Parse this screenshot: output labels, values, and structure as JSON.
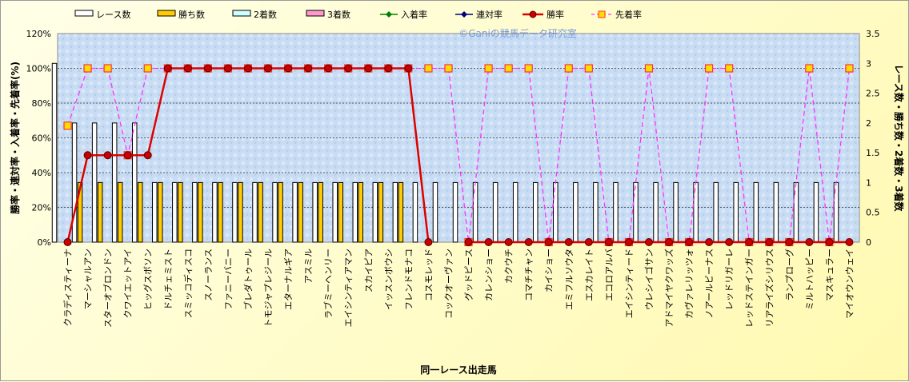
{
  "chart_data": {
    "type": "bar",
    "watermark": "©Ganiの競馬データ研究室",
    "xlabel": "同一レース出走馬",
    "ylabel_left": "勝率・連対率・入着率・先着率(%)",
    "ylabel_right": "レース数・勝ち数・2着数・3着数",
    "y_left_lim": [
      0,
      120
    ],
    "y_left_ticks": [
      "0%",
      "20%",
      "40%",
      "60%",
      "80%",
      "100%",
      "120%"
    ],
    "y_right_lim": [
      0,
      3.5
    ],
    "y_right_ticks": [
      "0",
      "0.5",
      "1",
      "1.5",
      "2",
      "2.5",
      "3",
      "3.5"
    ],
    "legend_position": "top",
    "colors": {
      "races": "#ffffff",
      "wins": "#ffcc00",
      "second": "#ccffff",
      "third": "#ff99cc",
      "place_rate": "#008000",
      "quinella_rate": "#000080",
      "win_rate": "#dd0000",
      "ahead_rate": "#ff33ff"
    },
    "categories": [
      "クラディスティーナ",
      "マーシャルアン",
      "スターオブロンドン",
      "クワイエットアイ",
      "ヒッグスボソン",
      "ドルチェミスト",
      "スミッコディスコ",
      "スノーランス",
      "ファニーバニー",
      "ブレダトゥール",
      "トモジャプレジール",
      "エターナルギア",
      "アスミル",
      "ラブミーヘンリー",
      "エイシンティアマン",
      "スカイピア",
      "イッスンボウシ",
      "フレンドモナコ",
      "コスモレッド",
      "コックオーヴァン",
      "グッドピース",
      "カレンショー",
      "カクウチ",
      "コマチチャン",
      "カイショー",
      "エミフルソウタ",
      "エスカレイト",
      "エコロアルバ",
      "エイシンティード",
      "ウレシイゴサン",
      "アドマイヤクワッズ",
      "カヴァレリッツォ",
      "ノアールビーナス",
      "レッドリガーレ",
      "レッドステインガー",
      "リアライズシリウス",
      "ランプローグ",
      "ミルトハッピー",
      "マスキュラー",
      "マイオウンウェイ"
    ],
    "series": [
      {
        "name": "レース数",
        "axis": "right",
        "values": [
          3,
          2,
          2,
          2,
          2,
          1,
          1,
          1,
          1,
          1,
          1,
          1,
          1,
          1,
          1,
          1,
          1,
          1,
          1,
          1,
          1,
          1,
          1,
          1,
          1,
          1,
          1,
          1,
          1,
          1,
          1,
          1,
          1,
          1,
          1,
          1,
          1,
          1,
          1,
          1
        ]
      },
      {
        "name": "勝ち数",
        "axis": "right",
        "values": [
          0,
          1,
          1,
          1,
          1,
          1,
          1,
          1,
          1,
          1,
          1,
          1,
          1,
          1,
          1,
          1,
          1,
          1,
          0,
          0,
          0,
          0,
          0,
          0,
          0,
          0,
          0,
          0,
          0,
          0,
          0,
          0,
          0,
          0,
          0,
          0,
          0,
          0,
          0,
          0
        ]
      },
      {
        "name": "2着数",
        "axis": "right",
        "values": [
          0,
          0,
          0,
          0,
          0,
          0,
          0,
          0,
          0,
          0,
          0,
          0,
          0,
          0,
          0,
          0,
          0,
          0,
          0,
          0,
          0,
          0,
          0,
          0,
          0,
          0,
          0,
          0,
          0,
          0,
          0,
          0,
          0,
          0,
          0,
          0,
          0,
          0,
          0,
          0
        ]
      },
      {
        "name": "3着数",
        "axis": "right",
        "values": [
          0,
          0,
          0,
          0,
          0,
          0,
          0,
          0,
          0,
          0,
          0,
          0,
          0,
          0,
          0,
          0,
          0,
          0,
          0,
          0,
          0,
          0,
          0,
          0,
          0,
          0,
          0,
          0,
          0,
          0,
          0,
          0,
          0,
          0,
          0,
          0,
          0,
          0,
          0,
          0
        ]
      },
      {
        "name": "入着率",
        "axis": "left",
        "values": [
          null,
          null,
          null,
          null,
          null,
          null,
          null,
          null,
          null,
          null,
          null,
          null,
          null,
          null,
          null,
          null,
          null,
          null,
          null,
          null,
          null,
          null,
          null,
          null,
          null,
          null,
          null,
          null,
          null,
          null,
          null,
          null,
          null,
          null,
          null,
          null,
          null,
          null,
          null,
          null
        ]
      },
      {
        "name": "連対率",
        "axis": "left",
        "values": [
          null,
          null,
          null,
          null,
          null,
          null,
          null,
          null,
          null,
          null,
          null,
          null,
          null,
          null,
          null,
          null,
          null,
          null,
          null,
          null,
          null,
          null,
          null,
          null,
          null,
          null,
          null,
          null,
          null,
          null,
          null,
          null,
          null,
          null,
          null,
          null,
          null,
          null,
          null,
          null
        ]
      },
      {
        "name": "勝率",
        "axis": "left",
        "values": [
          0,
          50,
          50,
          50,
          50,
          100,
          100,
          100,
          100,
          100,
          100,
          100,
          100,
          100,
          100,
          100,
          100,
          100,
          0,
          null,
          0,
          0,
          0,
          0,
          0,
          0,
          0,
          0,
          0,
          0,
          0,
          0,
          0,
          0,
          0,
          0,
          0,
          0,
          0,
          0
        ]
      },
      {
        "name": "先着率",
        "axis": "left",
        "values": [
          67,
          100,
          100,
          50,
          100,
          100,
          100,
          100,
          100,
          100,
          100,
          100,
          100,
          100,
          100,
          100,
          100,
          100,
          100,
          100,
          0,
          100,
          100,
          100,
          0,
          100,
          100,
          0,
          0,
          100,
          0,
          0,
          100,
          100,
          0,
          0,
          0,
          100,
          0,
          100
        ]
      }
    ]
  }
}
